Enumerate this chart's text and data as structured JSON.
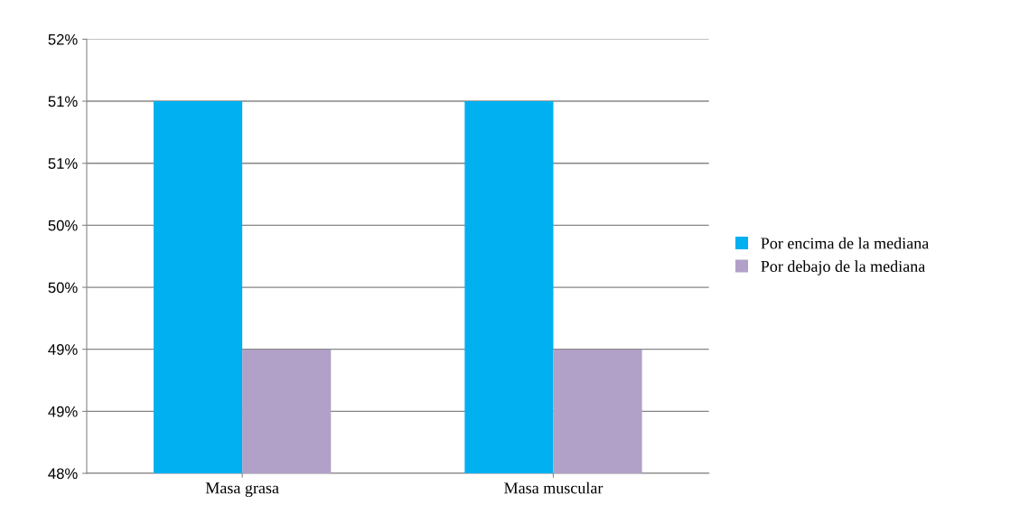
{
  "chart_data": {
    "type": "bar",
    "categories": [
      "Masa grasa",
      "Masa muscular"
    ],
    "series": [
      {
        "name": "Por encima de la mediana",
        "color": "#00b0f0",
        "values": [
          51.43,
          51.43
        ]
      },
      {
        "name": "Por debajo de la mediana",
        "color": "#b1a0c7",
        "values": [
          49.14,
          49.14
        ]
      }
    ],
    "ylim": [
      48,
      52
    ],
    "yticks": [
      {
        "value": 48,
        "label": "48%"
      },
      {
        "value": 48.571,
        "label": "49%"
      },
      {
        "value": 49.143,
        "label": "49%"
      },
      {
        "value": 49.714,
        "label": "50%"
      },
      {
        "value": 50.286,
        "label": "50%"
      },
      {
        "value": 50.857,
        "label": "51%"
      },
      {
        "value": 51.429,
        "label": "51%"
      },
      {
        "value": 52,
        "label": "52%"
      }
    ],
    "grid": "y",
    "legend": "right"
  }
}
